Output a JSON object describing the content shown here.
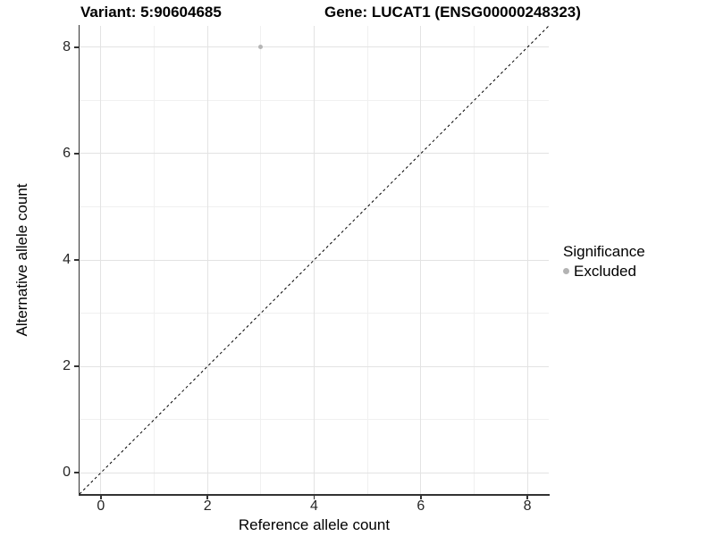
{
  "chart_data": {
    "type": "scatter",
    "title_left": "Variant: 5:90604685",
    "title_right": "Gene: LUCAT1 (ENSG00000248323)",
    "xlabel": "Reference allele count",
    "ylabel": "Alternative allele count",
    "xlim": [
      -0.4,
      8.4
    ],
    "ylim": [
      -0.4,
      8.4
    ],
    "x_major_ticks": [
      0,
      2,
      4,
      6,
      8
    ],
    "x_minor_ticks": [
      1,
      3,
      5,
      7
    ],
    "y_major_ticks": [
      0,
      2,
      4,
      6,
      8
    ],
    "y_minor_ticks": [
      1,
      3,
      5,
      7
    ],
    "grid": true,
    "points": [
      {
        "x": 3,
        "y": 8,
        "series": "Excluded"
      }
    ],
    "reference_line": {
      "style": "dashed",
      "slope": 1,
      "intercept": 0
    },
    "legend": {
      "title": "Significance",
      "position": "right",
      "entries": [
        {
          "label": "Excluded",
          "color": "#b3b3b3",
          "marker": "circle"
        }
      ]
    },
    "colors": {
      "point": "#b5b5b5",
      "grid_major": "#e3e3e3",
      "grid_minor": "#f0f0f0",
      "axis_line": "#333333",
      "dashed_line": "#000000",
      "background": "#ffffff",
      "text": "#000000"
    }
  }
}
